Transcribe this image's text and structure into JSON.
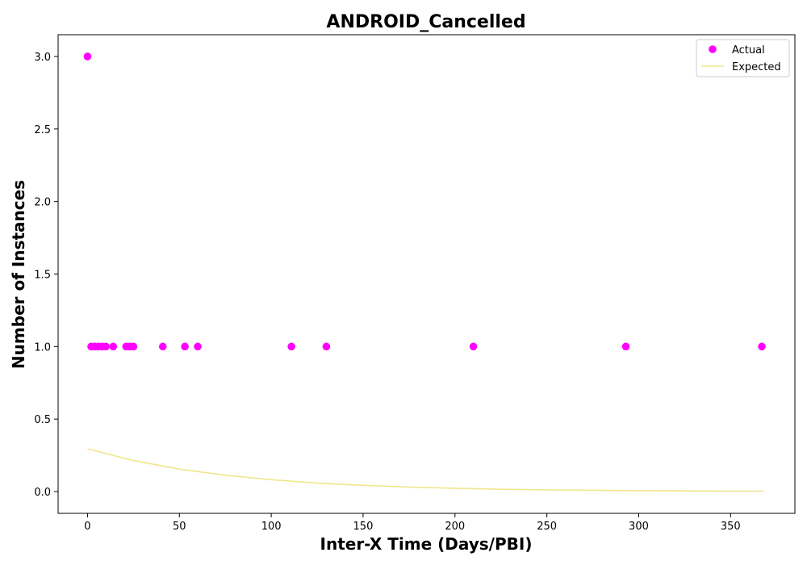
{
  "chart_data": {
    "type": "scatter",
    "title": "ANDROID_Cancelled",
    "xlabel": "Inter-X Time (Days/PBI)",
    "ylabel": "Number of Instances",
    "xlim": [
      -16,
      385
    ],
    "ylim": [
      -0.15,
      3.15
    ],
    "xticks": [
      0,
      50,
      100,
      150,
      200,
      250,
      300,
      350
    ],
    "xtick_labels": [
      "0",
      "50",
      "100",
      "150",
      "200",
      "250",
      "300",
      "350"
    ],
    "yticks": [
      0.0,
      0.5,
      1.0,
      1.5,
      2.0,
      2.5,
      3.0
    ],
    "ytick_labels": [
      "0.0",
      "0.5",
      "1.0",
      "1.5",
      "2.0",
      "2.5",
      "3.0"
    ],
    "grid": false,
    "legend": {
      "placement": "top-right",
      "entries": [
        {
          "label": "Actual",
          "marker": "circle",
          "color": "#ff00ff"
        },
        {
          "label": "Expected",
          "marker": "line",
          "color": "#f0e68c"
        }
      ]
    },
    "series": [
      {
        "name": "Actual",
        "kind": "scatter",
        "color": "#ff00ff",
        "points": [
          {
            "x": 0,
            "y": 3
          },
          {
            "x": 2,
            "y": 1
          },
          {
            "x": 4,
            "y": 1
          },
          {
            "x": 6,
            "y": 1
          },
          {
            "x": 8,
            "y": 1
          },
          {
            "x": 10,
            "y": 1
          },
          {
            "x": 14,
            "y": 1
          },
          {
            "x": 21,
            "y": 1
          },
          {
            "x": 23,
            "y": 1
          },
          {
            "x": 25,
            "y": 1
          },
          {
            "x": 41,
            "y": 1
          },
          {
            "x": 53,
            "y": 1
          },
          {
            "x": 60,
            "y": 1
          },
          {
            "x": 111,
            "y": 1
          },
          {
            "x": 130,
            "y": 1
          },
          {
            "x": 210,
            "y": 1
          },
          {
            "x": 293,
            "y": 1
          },
          {
            "x": 367,
            "y": 1
          }
        ]
      },
      {
        "name": "Expected",
        "kind": "line",
        "color": "#f0e68c",
        "points": [
          {
            "x": 0,
            "y": 0.295
          },
          {
            "x": 25,
            "y": 0.214
          },
          {
            "x": 50,
            "y": 0.155
          },
          {
            "x": 75,
            "y": 0.113
          },
          {
            "x": 100,
            "y": 0.082
          },
          {
            "x": 125,
            "y": 0.059
          },
          {
            "x": 150,
            "y": 0.043
          },
          {
            "x": 175,
            "y": 0.031
          },
          {
            "x": 200,
            "y": 0.023
          },
          {
            "x": 225,
            "y": 0.016
          },
          {
            "x": 250,
            "y": 0.012
          },
          {
            "x": 275,
            "y": 0.009
          },
          {
            "x": 300,
            "y": 0.006
          },
          {
            "x": 325,
            "y": 0.005
          },
          {
            "x": 350,
            "y": 0.003
          },
          {
            "x": 368,
            "y": 0.003
          }
        ]
      }
    ]
  }
}
